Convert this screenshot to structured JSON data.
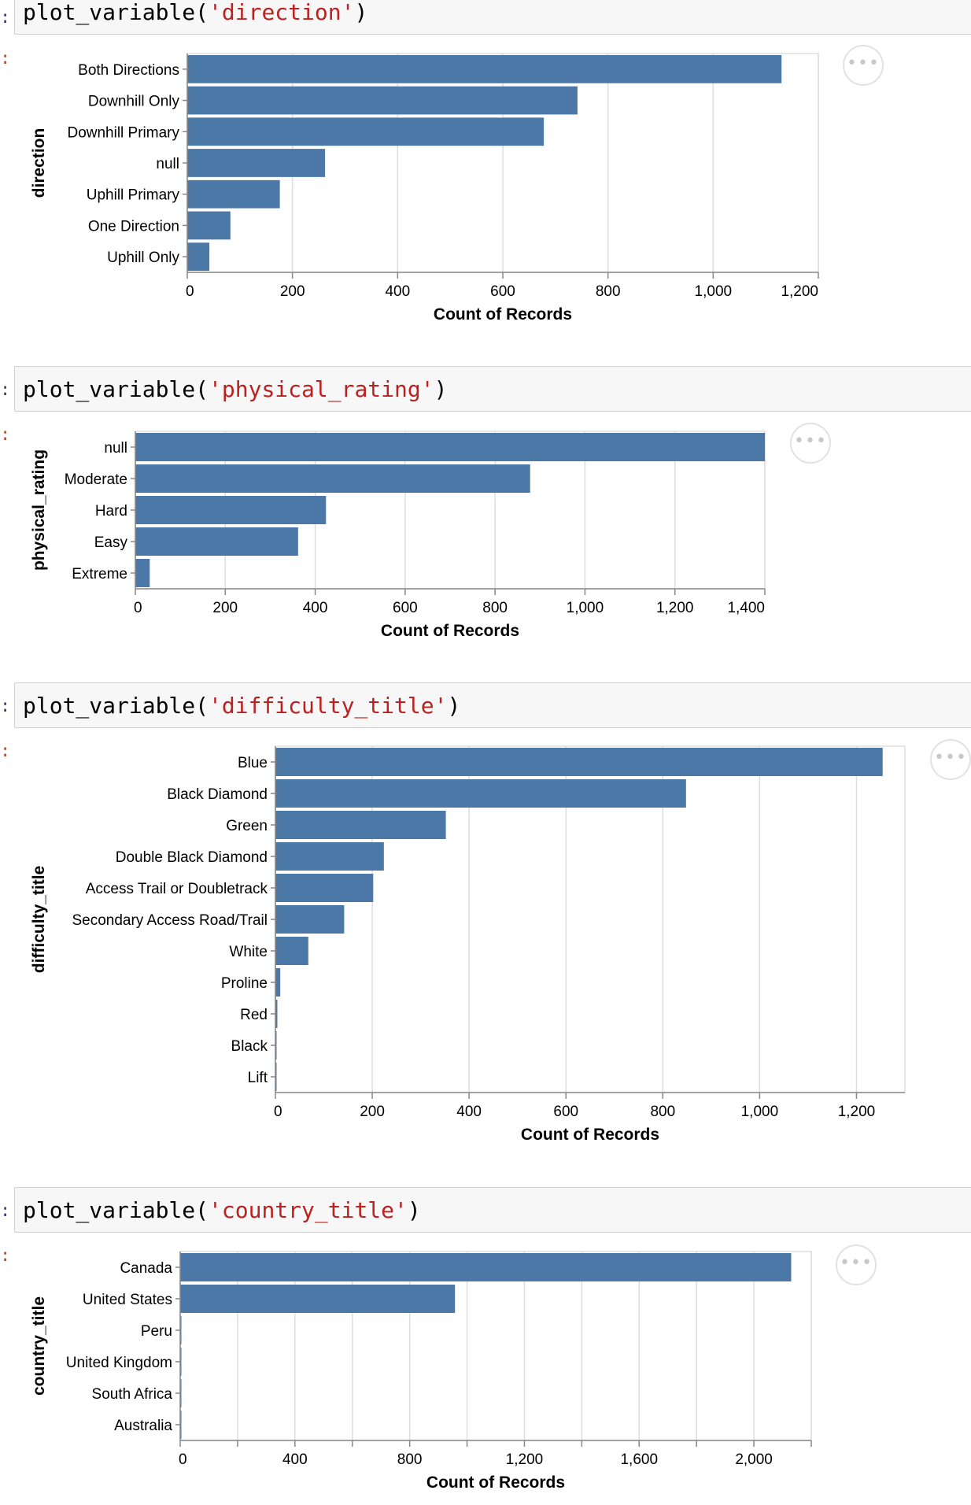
{
  "cells": [
    {
      "code_prefix": "plot_variable(",
      "code_arg": "'direction'",
      "code_suffix": ")",
      "chart_data": {
        "type": "bar",
        "orientation": "horizontal",
        "categories": [
          "Both Directions",
          "Downhill Only",
          "Downhill Primary",
          "null",
          "Uphill Primary",
          "One Direction",
          "Uphill Only"
        ],
        "values": [
          1130,
          742,
          678,
          262,
          176,
          82,
          42
        ],
        "xlabel": "Count of Records",
        "ylabel": "direction",
        "xlim": [
          0,
          1200
        ],
        "xticks": [
          0,
          200,
          400,
          600,
          800,
          1000,
          1200
        ],
        "xtick_labels": [
          "0",
          "200",
          "400",
          "600",
          "800",
          "1,000",
          "1,200"
        ],
        "grid": true,
        "bar_color": "#4c78a8"
      }
    },
    {
      "code_prefix": "plot_variable(",
      "code_arg": "'physical_rating'",
      "code_suffix": ")",
      "chart_data": {
        "type": "bar",
        "orientation": "horizontal",
        "categories": [
          "null",
          "Moderate",
          "Hard",
          "Easy",
          "Extreme"
        ],
        "values": [
          1400,
          878,
          424,
          362,
          32
        ],
        "xlabel": "Count of Records",
        "ylabel": "physical_rating",
        "xlim": [
          0,
          1400
        ],
        "xticks": [
          0,
          200,
          400,
          600,
          800,
          1000,
          1200,
          1400
        ],
        "xtick_labels": [
          "0",
          "200",
          "400",
          "600",
          "800",
          "1,000",
          "1,200",
          "1,400"
        ],
        "grid": true,
        "bar_color": "#4c78a8"
      }
    },
    {
      "code_prefix": "plot_variable(",
      "code_arg": "'difficulty_title'",
      "code_suffix": ")",
      "chart_data": {
        "type": "bar",
        "orientation": "horizontal",
        "categories": [
          "Blue",
          "Black Diamond",
          "Green",
          "Double Black Diamond",
          "Access Trail or Doubletrack",
          "Secondary Access Road/Trail",
          "White",
          "Proline",
          "Red",
          "Black",
          "Lift"
        ],
        "values": [
          1254,
          848,
          352,
          224,
          202,
          142,
          68,
          10,
          4,
          1,
          1
        ],
        "xlabel": "Count of Records",
        "ylabel": "difficulty_title",
        "xlim": [
          0,
          1300
        ],
        "xticks": [
          0,
          200,
          400,
          600,
          800,
          1000,
          1200
        ],
        "xtick_labels": [
          "0",
          "200",
          "400",
          "600",
          "800",
          "1,000",
          "1,200"
        ],
        "grid": true,
        "bar_color": "#4c78a8"
      }
    },
    {
      "code_prefix": "plot_variable(",
      "code_arg": "'country_title'",
      "code_suffix": ")",
      "chart_data": {
        "type": "bar",
        "orientation": "horizontal",
        "categories": [
          "Canada",
          "United States",
          "Peru",
          "United Kingdom",
          "South Africa",
          "Australia"
        ],
        "values": [
          2130,
          958,
          1,
          1,
          1,
          1
        ],
        "xlabel": "Count of Records",
        "ylabel": "country_title",
        "xlim": [
          0,
          2200
        ],
        "xticks": [
          0,
          400,
          800,
          1200,
          1600,
          2000
        ],
        "xtick_labels": [
          "0",
          "400",
          "800",
          "1,200",
          "1,600",
          "2,000"
        ],
        "minor_xticks": [
          200,
          600,
          1000,
          1400,
          1800,
          2200
        ],
        "grid": true,
        "bar_color": "#4c78a8"
      }
    }
  ],
  "actions_icon": "more-horizontal-icon",
  "actions_glyph": "•••"
}
